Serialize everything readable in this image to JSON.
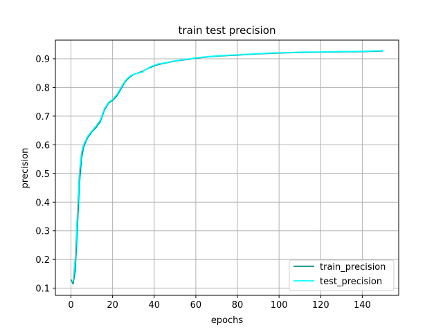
{
  "chart_data": {
    "type": "line",
    "title": "train test precision",
    "xlabel": "epochs",
    "ylabel": "precision",
    "xlim": [
      -7.5,
      157.5
    ],
    "ylim": [
      0.075,
      0.965
    ],
    "xticks": [
      0,
      20,
      40,
      60,
      80,
      100,
      120,
      140
    ],
    "yticks": [
      0.1,
      0.2,
      0.3,
      0.4,
      0.5,
      0.6,
      0.7,
      0.8,
      0.9
    ],
    "xtick_labels": [
      "0",
      "20",
      "40",
      "60",
      "80",
      "100",
      "120",
      "140"
    ],
    "ytick_labels": [
      "0.1",
      "0.2",
      "0.3",
      "0.4",
      "0.5",
      "0.6",
      "0.7",
      "0.8",
      "0.9"
    ],
    "grid": true,
    "legend_position": "lower-right",
    "series": [
      {
        "name": "train_precision",
        "color": "#008b8b",
        "x": [
          0,
          1,
          2,
          3,
          4,
          5,
          6,
          7,
          8,
          10,
          12,
          14,
          16,
          18,
          20,
          22,
          24,
          26,
          28,
          30,
          34,
          38,
          42,
          46,
          50,
          55,
          60,
          65,
          70,
          75,
          80,
          90,
          100,
          110,
          120,
          130,
          140,
          145,
          150
        ],
        "values": [
          0.13,
          0.115,
          0.16,
          0.3,
          0.46,
          0.55,
          0.59,
          0.61,
          0.625,
          0.645,
          0.66,
          0.68,
          0.72,
          0.745,
          0.755,
          0.77,
          0.795,
          0.82,
          0.835,
          0.845,
          0.855,
          0.87,
          0.88,
          0.886,
          0.892,
          0.897,
          0.902,
          0.906,
          0.909,
          0.911,
          0.913,
          0.917,
          0.92,
          0.922,
          0.923,
          0.924,
          0.925,
          0.926,
          0.927
        ]
      },
      {
        "name": "test_precision",
        "color": "#00ffff",
        "x": [
          0,
          1,
          2,
          3,
          4,
          5,
          6,
          7,
          8,
          10,
          12,
          14,
          16,
          18,
          20,
          22,
          24,
          26,
          28,
          30,
          34,
          38,
          42,
          46,
          50,
          55,
          60,
          65,
          70,
          75,
          80,
          90,
          100,
          110,
          120,
          130,
          140,
          145,
          150
        ],
        "values": [
          0.12,
          0.125,
          0.2,
          0.35,
          0.5,
          0.57,
          0.6,
          0.615,
          0.63,
          0.648,
          0.665,
          0.685,
          0.725,
          0.748,
          0.758,
          0.775,
          0.8,
          0.823,
          0.838,
          0.846,
          0.853,
          0.872,
          0.882,
          0.887,
          0.893,
          0.898,
          0.903,
          0.907,
          0.91,
          0.912,
          0.914,
          0.918,
          0.921,
          0.923,
          0.924,
          0.925,
          0.926,
          0.927,
          0.928
        ]
      }
    ]
  }
}
